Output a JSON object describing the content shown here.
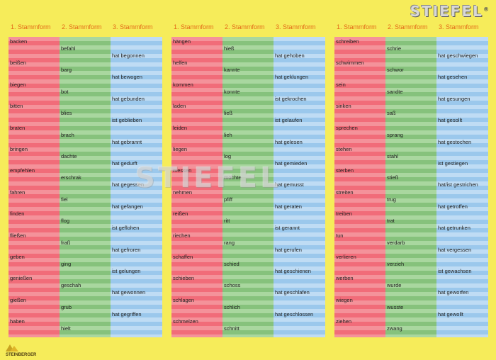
{
  "brand": {
    "logo": "STIEFEL",
    "reg": "®",
    "watermark": "STIEFEL",
    "publisher_logo": "STEINBERGER"
  },
  "headers": [
    "1. Stammform",
    "2. Stammform",
    "3. Stammform"
  ],
  "blocks": [
    {
      "rows": [
        [
          "backen",
          "befahl",
          "hat begonnen"
        ],
        [
          "beißen",
          "barg",
          "hat bewogen"
        ],
        [
          "biegen",
          "bot",
          "hat gebunden"
        ],
        [
          "bitten",
          "blies",
          "ist geblieben"
        ],
        [
          "braten",
          "brach",
          "hat gebrannt"
        ],
        [
          "bringen",
          "dachte",
          "hat gedurft"
        ],
        [
          "empfehlen",
          "erschrak",
          "hat gegessen"
        ],
        [
          "fahren",
          "fiel",
          "hat gefangen"
        ],
        [
          "finden",
          "flog",
          "ist geflohen"
        ],
        [
          "fließen",
          "fraß",
          "hat gefroren"
        ],
        [
          "geben",
          "ging",
          "ist gelungen"
        ],
        [
          "genießen",
          "geschah",
          "hat gewonnen"
        ],
        [
          "gießen",
          "grub",
          "hat gegriffen"
        ],
        [
          "haben",
          "hielt",
          ""
        ]
      ]
    },
    {
      "rows": [
        [
          "hängen",
          "hieß",
          "hat gehoben"
        ],
        [
          "helfen",
          "kannte",
          "hat geklungen"
        ],
        [
          "kommen",
          "konnte",
          "ist gekrochen"
        ],
        [
          "laden",
          "ließ",
          "ist gelaufen"
        ],
        [
          "leiden",
          "lieh",
          "hat gelesen"
        ],
        [
          "liegen",
          "log",
          "hat gemieden"
        ],
        [
          "messen",
          "mochte",
          "hat gemusst"
        ],
        [
          "nehmen",
          "pfiff",
          "hat geraten"
        ],
        [
          "reißen",
          "ritt",
          "ist gerannt"
        ],
        [
          "riechen",
          "rang",
          "hat gerufen"
        ],
        [
          "schaffen",
          "schied",
          "hat geschienen"
        ],
        [
          "schieben",
          "schoss",
          "hat geschlafen"
        ],
        [
          "schlagen",
          "schlich",
          "hat geschlossen"
        ],
        [
          "schmelzen",
          "schnitt",
          ""
        ]
      ]
    },
    {
      "rows": [
        [
          "schreiben",
          "schrie",
          "hat geschwiegen"
        ],
        [
          "schwimmen",
          "schwor",
          "hat gesehen"
        ],
        [
          "sein",
          "sandte",
          "hat gesungen"
        ],
        [
          "sinken",
          "saß",
          "hat gesollt"
        ],
        [
          "sprechen",
          "sprang",
          "hat gestochen"
        ],
        [
          "stehen",
          "stahl",
          "ist gestiegen"
        ],
        [
          "sterben",
          "stieß",
          "hat/ist gestrichen"
        ],
        [
          "streiten",
          "trug",
          "hat getroffen"
        ],
        [
          "treiben",
          "trat",
          "hat getrunken"
        ],
        [
          "tun",
          "verdarb",
          "hat vergessen"
        ],
        [
          "verlieren",
          "verzieh",
          "ist gewachsen"
        ],
        [
          "werben",
          "wurde",
          "hat geworfen"
        ],
        [
          "wiegen",
          "wusste",
          "hat gewollt"
        ],
        [
          "ziehen",
          "zwang",
          ""
        ]
      ]
    }
  ]
}
